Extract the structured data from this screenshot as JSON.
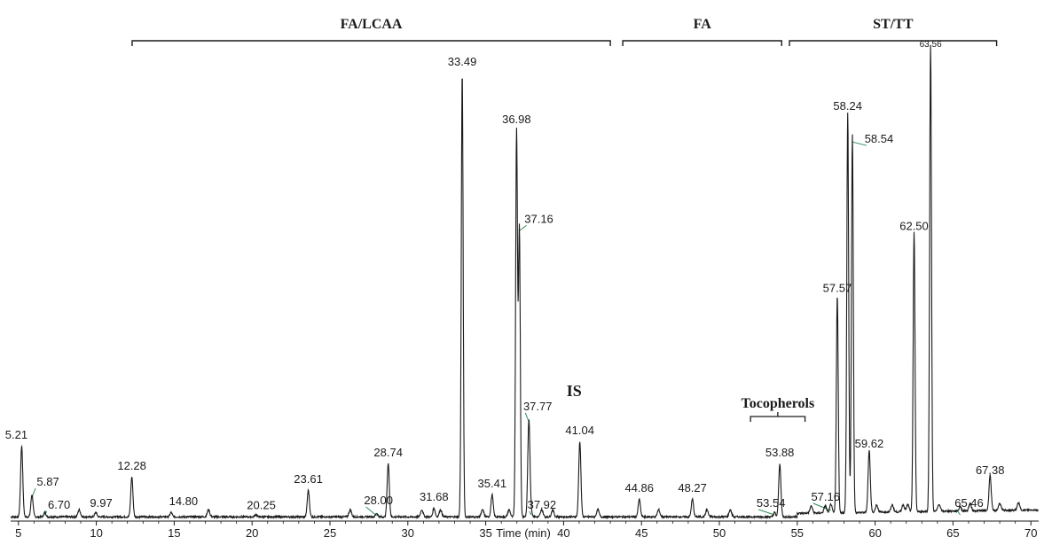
{
  "chart_data": {
    "type": "line",
    "title": "",
    "xlabel": "Time (min)",
    "ylabel": "",
    "xlim": [
      4.5,
      70.5
    ],
    "grid": false,
    "x_ticks": [
      5,
      10,
      15,
      20,
      25,
      30,
      35,
      40,
      45,
      50,
      55,
      60,
      65,
      70
    ],
    "x_tick_labels": [
      "5",
      "10",
      "15",
      "20",
      "25",
      "30",
      "35",
      "40",
      "45",
      "50",
      "55",
      "60",
      "65",
      "70"
    ],
    "region_brackets": [
      {
        "label": "FA/LCAA",
        "x_start": 12.3,
        "x_end": 43.0
      },
      {
        "label": "FA",
        "x_start": 43.8,
        "x_end": 54.0
      },
      {
        "label": "ST/TT",
        "x_start": 54.5,
        "x_end": 67.8
      }
    ],
    "tocopherols_bracket": {
      "label": "Tocopherols",
      "x_start": 52.0,
      "x_end": 55.5
    },
    "is_label": {
      "text": "IS",
      "x": 40.9
    },
    "peaks": [
      {
        "time": 5.21,
        "label": "5.21",
        "height": 16
      },
      {
        "time": 5.87,
        "label": "5.87",
        "height": 5
      },
      {
        "time": 6.7,
        "label": "6.70",
        "height": 1
      },
      {
        "time": 9.97,
        "label": "9.97",
        "height": 1
      },
      {
        "time": 12.28,
        "label": "12.28",
        "height": 9
      },
      {
        "time": 14.8,
        "label": "14.80",
        "height": 1
      },
      {
        "time": 20.25,
        "label": "20.25",
        "height": 0.5
      },
      {
        "time": 23.61,
        "label": "23.61",
        "height": 6
      },
      {
        "time": 28.0,
        "label": "28.00",
        "height": 0.8
      },
      {
        "time": 28.74,
        "label": "28.74",
        "height": 12
      },
      {
        "time": 31.68,
        "label": "31.68",
        "height": 2
      },
      {
        "time": 33.49,
        "label": "33.49",
        "height": 100
      },
      {
        "time": 35.41,
        "label": "35.41",
        "height": 5
      },
      {
        "time": 36.98,
        "label": "36.98",
        "height": 87
      },
      {
        "time": 37.16,
        "label": "37.16",
        "height": 65
      },
      {
        "time": 37.77,
        "label": "37.77",
        "height": 22
      },
      {
        "time": 37.92,
        "label": "37.92",
        "height": 1
      },
      {
        "time": 41.04,
        "label": "41.04",
        "height": 17
      },
      {
        "time": 44.86,
        "label": "44.86",
        "height": 4
      },
      {
        "time": 48.27,
        "label": "48.27",
        "height": 4
      },
      {
        "time": 53.54,
        "label": "53.54",
        "height": 1
      },
      {
        "time": 53.88,
        "label": "53.88",
        "height": 12
      },
      {
        "time": 57.16,
        "label": "57.16",
        "height": 2
      },
      {
        "time": 57.57,
        "label": "57.57",
        "height": 49
      },
      {
        "time": 58.24,
        "label": "58.24",
        "height": 90
      },
      {
        "time": 58.54,
        "label": "58.54",
        "height": 85
      },
      {
        "time": 59.62,
        "label": "59.62",
        "height": 14
      },
      {
        "time": 62.5,
        "label": "62.50",
        "height": 63
      },
      {
        "time": 63.56,
        "label": "63.56",
        "height": 105
      },
      {
        "time": 65.46,
        "label": "65.46",
        "height": 1
      },
      {
        "time": 67.38,
        "label": "67.38",
        "height": 8
      }
    ],
    "colors": {
      "trace": "#1a1a1a",
      "leader": "#2e8b57",
      "text": "#1a1a1a"
    }
  }
}
